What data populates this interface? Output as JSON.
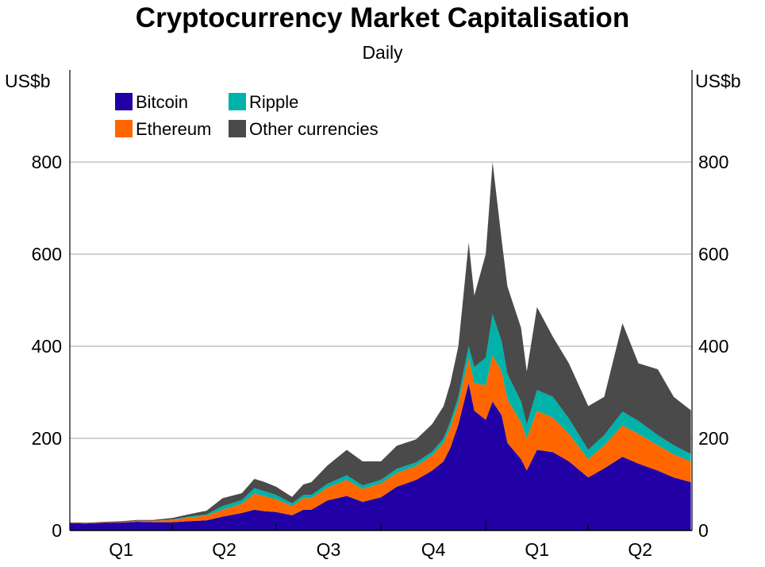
{
  "colors": {
    "Bitcoin": "#2100A6",
    "Ethereum": "#FF6600",
    "Ripple": "#00B2A9",
    "Other currencies": "#4A4A4A",
    "grid": "#A6A6A6",
    "axis": "#000000"
  },
  "chart_data": {
    "type": "area",
    "stacked": true,
    "title": "Cryptocurrency Market Capitalisation",
    "subtitle": "Daily",
    "y_unit_left": "US$b",
    "y_unit_right": "US$b",
    "ylim": [
      0,
      1000
    ],
    "yticks": [
      0,
      200,
      400,
      600,
      800
    ],
    "ytick_labels": [
      "0",
      "200",
      "400",
      "600",
      "800"
    ],
    "grid": true,
    "x_period_labels": [
      "Q1",
      "Q2",
      "Q3",
      "Q4",
      "Q1",
      "Q2"
    ],
    "x_start": "2017-01-01",
    "x_end": "2018-06-30",
    "x_period_starts": [
      "2017-01-01",
      "2017-04-01",
      "2017-07-01",
      "2017-10-01",
      "2018-01-01",
      "2018-04-01"
    ],
    "legend_position": "top-left",
    "series_order": [
      "Bitcoin",
      "Ethereum",
      "Ripple",
      "Other currencies"
    ],
    "x": [
      "2017-01-01",
      "2017-01-15",
      "2017-02-01",
      "2017-02-15",
      "2017-03-01",
      "2017-03-15",
      "2017-04-01",
      "2017-04-15",
      "2017-05-01",
      "2017-05-15",
      "2017-06-01",
      "2017-06-12",
      "2017-06-20",
      "2017-07-01",
      "2017-07-15",
      "2017-07-25",
      "2017-08-01",
      "2017-08-15",
      "2017-09-01",
      "2017-09-15",
      "2017-10-01",
      "2017-10-15",
      "2017-11-01",
      "2017-11-15",
      "2017-11-25",
      "2017-12-01",
      "2017-12-08",
      "2017-12-17",
      "2017-12-22",
      "2018-01-01",
      "2018-01-07",
      "2018-01-15",
      "2018-01-20",
      "2018-02-01",
      "2018-02-06",
      "2018-02-15",
      "2018-03-01",
      "2018-03-15",
      "2018-04-01",
      "2018-04-15",
      "2018-05-01",
      "2018-05-15",
      "2018-06-01",
      "2018-06-15",
      "2018-06-30"
    ],
    "series": [
      {
        "name": "Bitcoin",
        "values": [
          16,
          15,
          17,
          17,
          19,
          18,
          18,
          20,
          22,
          30,
          38,
          45,
          42,
          40,
          33,
          45,
          45,
          65,
          75,
          62,
          72,
          95,
          110,
          130,
          150,
          180,
          230,
          320,
          260,
          240,
          280,
          250,
          190,
          155,
          130,
          175,
          170,
          150,
          115,
          135,
          160,
          145,
          130,
          115,
          105
        ]
      },
      {
        "name": "Ethereum",
        "values": [
          1,
          1,
          1,
          1,
          2,
          3,
          5,
          8,
          10,
          15,
          20,
          35,
          33,
          28,
          20,
          25,
          25,
          28,
          35,
          28,
          30,
          30,
          30,
          33,
          40,
          45,
          45,
          55,
          60,
          75,
          100,
          95,
          95,
          80,
          70,
          85,
          75,
          60,
          40,
          50,
          68,
          65,
          55,
          50,
          45
        ]
      },
      {
        "name": "Ripple",
        "values": [
          0,
          0,
          0,
          0,
          0,
          0,
          1,
          2,
          3,
          8,
          8,
          12,
          11,
          9,
          6,
          7,
          7,
          8,
          10,
          8,
          8,
          9,
          8,
          8,
          10,
          12,
          15,
          25,
          35,
          60,
          90,
          65,
          55,
          45,
          30,
          45,
          45,
          33,
          20,
          22,
          30,
          28,
          22,
          20,
          16
        ]
      },
      {
        "name": "Other currencies",
        "values": [
          1,
          1,
          1,
          2,
          2,
          2,
          3,
          5,
          8,
          17,
          15,
          20,
          20,
          18,
          14,
          23,
          28,
          40,
          55,
          52,
          40,
          50,
          50,
          60,
          70,
          83,
          110,
          225,
          155,
          225,
          330,
          220,
          190,
          160,
          115,
          180,
          130,
          120,
          95,
          83,
          192,
          125,
          143,
          105,
          95
        ]
      }
    ]
  }
}
